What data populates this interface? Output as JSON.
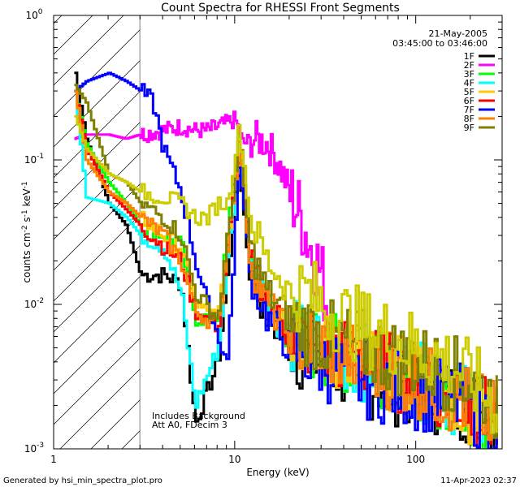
{
  "chart_data": {
    "type": "line",
    "title": "Count Spectra for RHESSI Front Segments",
    "xlabel": "Energy (keV)",
    "ylabel": "counts cm-2 s-1 keV-1",
    "xscale": "log",
    "yscale": "log",
    "xlim": [
      1,
      300
    ],
    "ylim": [
      0.001,
      1
    ],
    "x_ticks": [
      {
        "value": 1,
        "label": "1"
      },
      {
        "value": 10,
        "label": "10"
      },
      {
        "value": 100,
        "label": "100"
      }
    ],
    "y_ticks": [
      {
        "value": 1,
        "base": "10",
        "exp": "0"
      },
      {
        "value": 0.1,
        "base": "10",
        "exp": "-1"
      },
      {
        "value": 0.01,
        "base": "10",
        "exp": "-2"
      },
      {
        "value": 0.001,
        "base": "10",
        "exp": "-3"
      }
    ],
    "date": "21-May-2005",
    "time_range": "03:45:00 to 03:46:00",
    "shaded_region": {
      "x_from": 1,
      "x_to": 3
    },
    "annotations": [
      "Includes Background",
      "Att A0, FDecim 3"
    ],
    "series": [
      {
        "name": "1F",
        "color": "#000000",
        "x": [
          1.3,
          1.5,
          2.0,
          2.5,
          3.0,
          4.0,
          5.0,
          6.0,
          8.0,
          10.5,
          12,
          15,
          20,
          30,
          50,
          100,
          200,
          280
        ],
        "y": [
          0.4,
          0.14,
          0.05,
          0.035,
          0.016,
          0.016,
          0.014,
          0.0015,
          0.004,
          0.09,
          0.016,
          0.008,
          0.005,
          0.004,
          0.003,
          0.0025,
          0.002,
          0.0015
        ]
      },
      {
        "name": "2F",
        "color": "#ff00ff",
        "x": [
          1.3,
          1.5,
          2.0,
          2.5,
          3.0,
          4.0,
          5.0,
          6.0,
          7.0,
          8.0,
          9.0,
          10.0,
          11,
          13,
          15,
          17,
          20,
          23,
          26,
          30,
          33
        ],
        "y": [
          0.14,
          0.15,
          0.15,
          0.14,
          0.15,
          0.16,
          0.17,
          0.16,
          0.16,
          0.17,
          0.18,
          0.19,
          0.13,
          0.14,
          0.13,
          0.1,
          0.06,
          0.04,
          0.025,
          0.016,
          0.008
        ]
      },
      {
        "name": "3F",
        "color": "#00ff00",
        "x": [
          1.3,
          1.5,
          2.0,
          2.5,
          3.0,
          4.0,
          5.0,
          6.0,
          8.0,
          10.5,
          12,
          15,
          20,
          30,
          50,
          100,
          200,
          280
        ],
        "y": [
          0.3,
          0.13,
          0.07,
          0.05,
          0.035,
          0.03,
          0.026,
          0.008,
          0.008,
          0.16,
          0.02,
          0.01,
          0.006,
          0.005,
          0.004,
          0.003,
          0.002,
          0.0015
        ]
      },
      {
        "name": "4F",
        "color": "#00ffff",
        "x": [
          1.3,
          1.5,
          2.0,
          2.5,
          3.0,
          4.0,
          5.0,
          6.0,
          8.0,
          10.5,
          12,
          15,
          20,
          30,
          50,
          100,
          200,
          280
        ],
        "y": [
          0.3,
          0.055,
          0.05,
          0.04,
          0.03,
          0.025,
          0.012,
          0.002,
          0.005,
          0.12,
          0.02,
          0.01,
          0.006,
          0.005,
          0.004,
          0.003,
          0.002,
          0.0015
        ]
      },
      {
        "name": "5F",
        "color": "#ffc800",
        "x": [
          1.3,
          1.5,
          2.0,
          2.5,
          3.0,
          4.0,
          5.0,
          6.0,
          8.0,
          10.5,
          12,
          15,
          20,
          30,
          50,
          100,
          200,
          280
        ],
        "y": [
          0.3,
          0.1,
          0.06,
          0.05,
          0.04,
          0.03,
          0.025,
          0.01,
          0.008,
          0.13,
          0.02,
          0.01,
          0.007,
          0.005,
          0.004,
          0.003,
          0.002,
          0.0015
        ]
      },
      {
        "name": "6F",
        "color": "#ff0000",
        "x": [
          1.3,
          1.5,
          2.0,
          2.5,
          3.0,
          4.0,
          5.0,
          6.0,
          8.0,
          10.5,
          12,
          15,
          20,
          30,
          50,
          100,
          200,
          280
        ],
        "y": [
          0.3,
          0.12,
          0.06,
          0.045,
          0.035,
          0.025,
          0.02,
          0.009,
          0.007,
          0.12,
          0.02,
          0.01,
          0.006,
          0.005,
          0.004,
          0.003,
          0.002,
          0.0015
        ]
      },
      {
        "name": "7F",
        "color": "#0000ff",
        "x": [
          1.3,
          1.5,
          2.0,
          2.5,
          3.0,
          3.5,
          4.0,
          5.0,
          6.0,
          7.0,
          8.0,
          9.0,
          10.5,
          12,
          15,
          20,
          30,
          50,
          100,
          200,
          280
        ],
        "y": [
          0.3,
          0.35,
          0.4,
          0.35,
          0.3,
          0.25,
          0.12,
          0.06,
          0.02,
          0.01,
          0.006,
          0.004,
          0.1,
          0.016,
          0.008,
          0.005,
          0.004,
          0.003,
          0.0025,
          0.002,
          0.0015
        ]
      },
      {
        "name": "8F",
        "color": "#ff8000",
        "x": [
          1.3,
          1.5,
          2.0,
          2.5,
          3.0,
          4.0,
          5.0,
          6.0,
          8.0,
          10.5,
          12,
          15,
          20,
          30,
          50,
          100,
          200,
          280
        ],
        "y": [
          0.3,
          0.1,
          0.06,
          0.05,
          0.04,
          0.03,
          0.02,
          0.009,
          0.007,
          0.14,
          0.02,
          0.01,
          0.006,
          0.005,
          0.004,
          0.003,
          0.002,
          0.0015
        ]
      },
      {
        "name": "9F",
        "color": "#808000",
        "x": [
          1.3,
          1.5,
          2.0,
          2.5,
          3.0,
          4.0,
          5.0,
          6.0,
          8.0,
          10.5,
          12,
          15,
          20,
          30,
          50,
          100,
          200,
          280
        ],
        "y": [
          0.33,
          0.25,
          0.08,
          0.07,
          0.05,
          0.04,
          0.03,
          0.012,
          0.008,
          0.14,
          0.025,
          0.012,
          0.008,
          0.006,
          0.005,
          0.004,
          0.003,
          0.002
        ]
      },
      {
        "name": "",
        "color": "#cccc00",
        "x": [
          1.3,
          1.5,
          2.0,
          2.5,
          3.0,
          4.0,
          5.0,
          6.0,
          7.0,
          8.0,
          9.0,
          10.5,
          12,
          15,
          20,
          25,
          30,
          40,
          50,
          70,
          100,
          150,
          200,
          280
        ],
        "y": [
          0.2,
          0.12,
          0.08,
          0.07,
          0.06,
          0.055,
          0.05,
          0.04,
          0.04,
          0.05,
          0.05,
          0.17,
          0.04,
          0.02,
          0.012,
          0.012,
          0.01,
          0.008,
          0.007,
          0.006,
          0.005,
          0.004,
          0.003,
          0.002
        ]
      }
    ]
  },
  "footer": {
    "left": "Generated by hsi_min_spectra_plot.pro",
    "right": "11-Apr-2023 02:37"
  }
}
